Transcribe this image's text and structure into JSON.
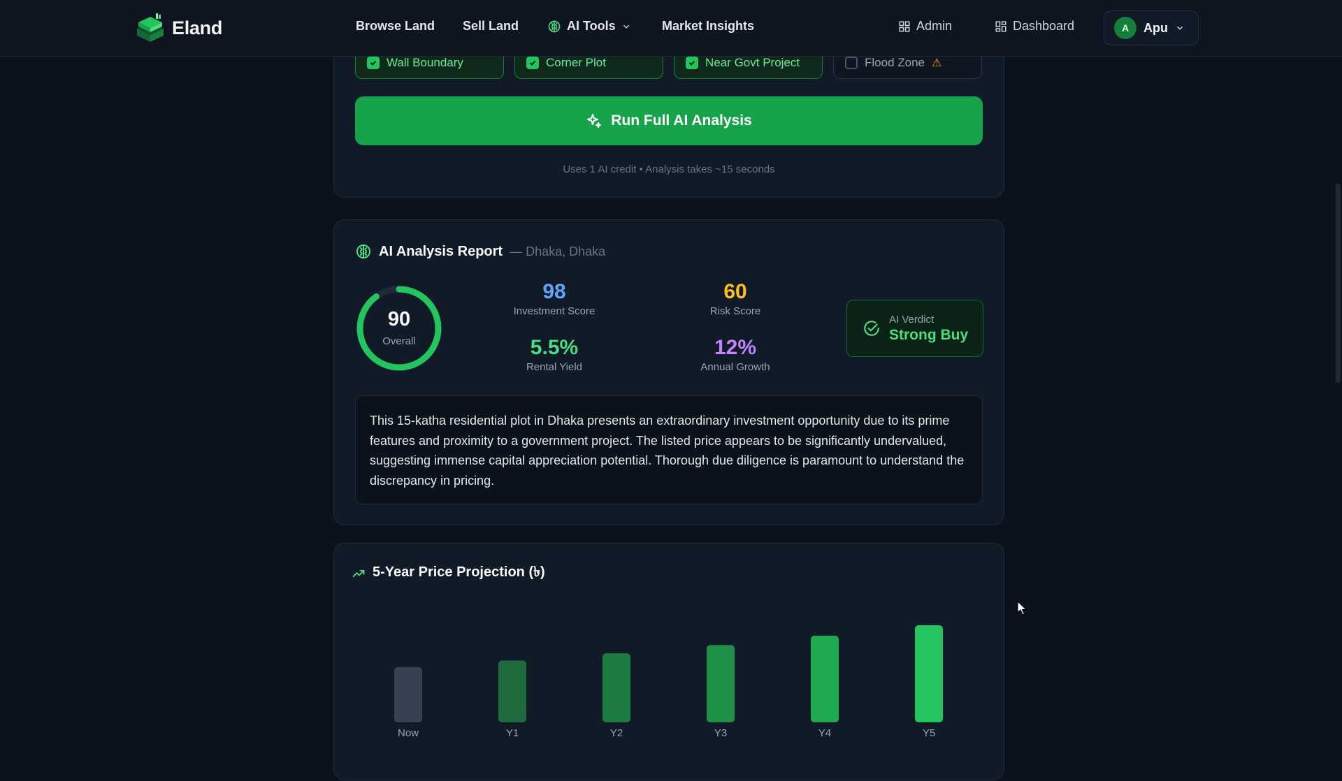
{
  "nav": {
    "brand": "Eland",
    "links": [
      {
        "label": "Browse Land"
      },
      {
        "label": "Sell Land"
      },
      {
        "label": "AI Tools"
      },
      {
        "label": "Market Insights"
      }
    ],
    "admin_label": "Admin",
    "dashboard_label": "Dashboard",
    "user": {
      "initial": "A",
      "name": "Apu"
    }
  },
  "features": [
    {
      "label": "Wall Boundary",
      "checked": true
    },
    {
      "label": "Corner Plot",
      "checked": true
    },
    {
      "label": "Near Govt Project",
      "checked": true
    },
    {
      "label": "Flood Zone",
      "checked": false
    }
  ],
  "run_button": {
    "label": "Run Full AI Analysis",
    "note": "Uses 1 AI credit • Analysis takes ~15 seconds"
  },
  "report": {
    "title": "AI Analysis Report",
    "location": "— Dhaka, Dhaka",
    "overall": {
      "value": "90",
      "label": "Overall",
      "fraction": 0.9
    },
    "metrics": {
      "investment": {
        "value": "98",
        "label": "Investment Score"
      },
      "risk": {
        "value": "60",
        "label": "Risk Score"
      },
      "yield": {
        "value": "5.5%",
        "label": "Rental Yield"
      },
      "growth": {
        "value": "12%",
        "label": "Annual Growth"
      }
    },
    "verdict": {
      "label": "AI Verdict",
      "value": "Strong Buy"
    },
    "summary": "This 15-katha residential plot in Dhaka presents an extraordinary investment opportunity due to its prime features and proximity to a government project. The listed price appears to be significantly undervalued, suggesting immense capital appreciation potential. Thorough due diligence is paramount to understand the discrepancy in pricing."
  },
  "colors": {
    "accent": "#16a34a",
    "investment": "#60a5fa",
    "risk": "#fbbf24",
    "yield": "#4ade80",
    "growth": "#c084fc"
  },
  "projection": {
    "title": "5-Year Price Projection (৳)"
  },
  "chart_data": {
    "type": "bar",
    "title": "5-Year Price Projection (৳)",
    "categories": [
      "Now",
      "Y1",
      "Y2",
      "Y3",
      "Y4",
      "Y5"
    ],
    "values": [
      1.0,
      1.12,
      1.25,
      1.4,
      1.57,
      1.76
    ],
    "colors": [
      "#374151",
      "#1f6b3e",
      "#1c7c42",
      "#1e9047",
      "#1faa4f",
      "#22c55e"
    ],
    "xlabel": "",
    "ylabel": ""
  }
}
